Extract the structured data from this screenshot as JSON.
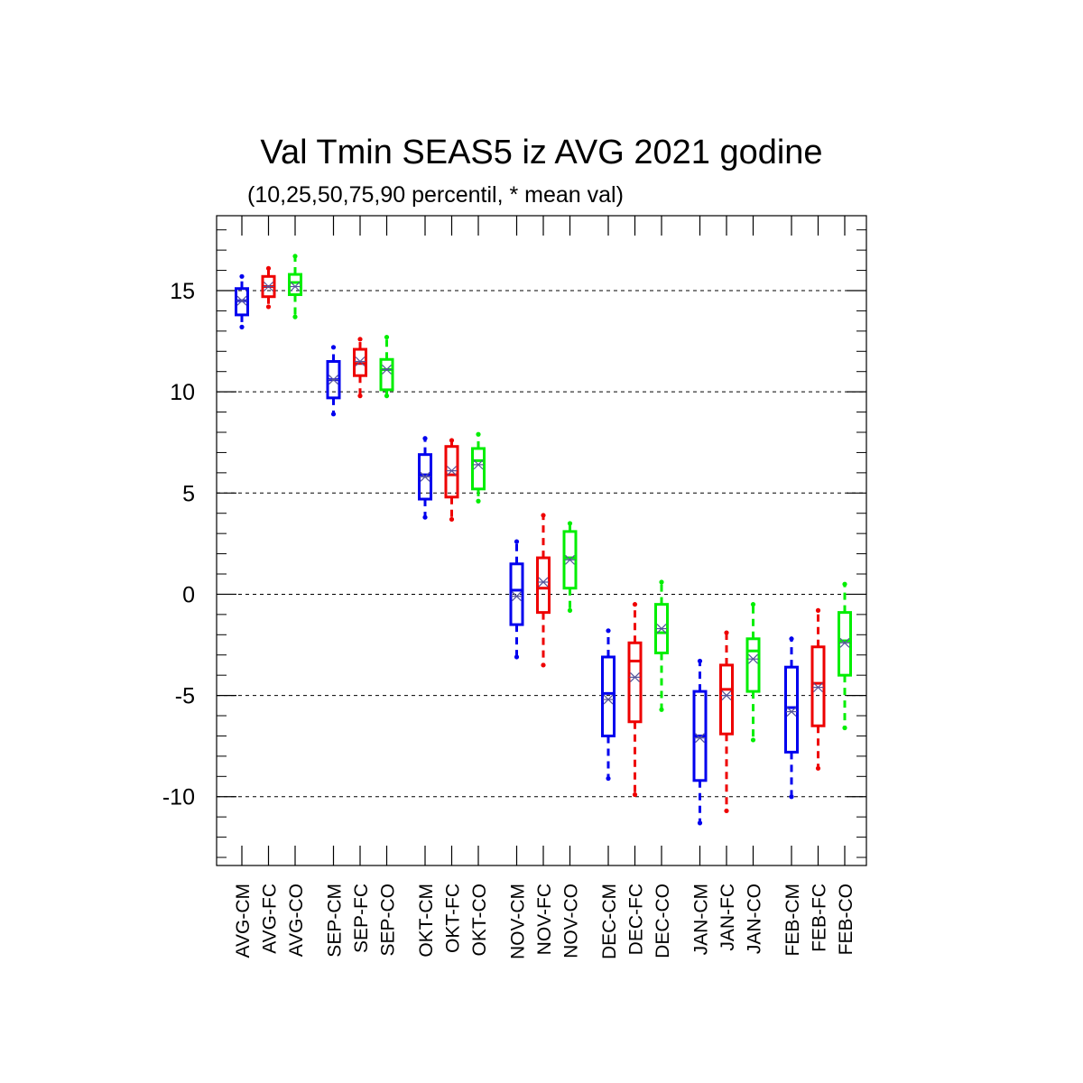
{
  "chart_data": {
    "type": "boxplot",
    "title": "Val Tmin SEAS5 iz AVG 2021 godine",
    "subtitle": "(10,25,50,75,90 percentil, * mean val)",
    "xlabel": "",
    "ylabel": "",
    "ylim": [
      -13.4,
      18.7
    ],
    "yticks": [
      15,
      10,
      5,
      0,
      -5,
      -10
    ],
    "ytick_labels": [
      "15",
      "10",
      "5",
      "0",
      "-5",
      "-10"
    ],
    "grid": "horizontal dashed",
    "series_colors": {
      "CM": "#0000ee",
      "FC": "#ee0000",
      "CO": "#00ee00"
    },
    "mean_marker_color": "#555599",
    "groups": [
      {
        "name": "AVG",
        "boxes": [
          {
            "label": "AVG-CM",
            "series": "CM",
            "p10": 13.2,
            "p25": 13.8,
            "p50": 14.5,
            "p75": 15.1,
            "p90": 15.7,
            "mean": 14.5
          },
          {
            "label": "AVG-FC",
            "series": "FC",
            "p10": 14.2,
            "p25": 14.7,
            "p50": 15.2,
            "p75": 15.7,
            "p90": 16.1,
            "mean": 15.2
          },
          {
            "label": "AVG-CO",
            "series": "CO",
            "p10": 13.7,
            "p25": 14.8,
            "p50": 15.4,
            "p75": 15.8,
            "p90": 16.7,
            "mean": 15.2
          }
        ]
      },
      {
        "name": "SEP",
        "boxes": [
          {
            "label": "SEP-CM",
            "series": "CM",
            "p10": 8.9,
            "p25": 9.7,
            "p50": 10.6,
            "p75": 11.5,
            "p90": 12.2,
            "mean": 10.6
          },
          {
            "label": "SEP-FC",
            "series": "FC",
            "p10": 9.8,
            "p25": 10.8,
            "p50": 11.4,
            "p75": 12.1,
            "p90": 12.6,
            "mean": 11.5
          },
          {
            "label": "SEP-CO",
            "series": "CO",
            "p10": 9.8,
            "p25": 10.1,
            "p50": 11.1,
            "p75": 11.6,
            "p90": 12.7,
            "mean": 11.1
          }
        ]
      },
      {
        "name": "OKT",
        "boxes": [
          {
            "label": "OKT-CM",
            "series": "CM",
            "p10": 3.8,
            "p25": 4.7,
            "p50": 5.9,
            "p75": 6.9,
            "p90": 7.7,
            "mean": 5.8
          },
          {
            "label": "OKT-FC",
            "series": "FC",
            "p10": 3.7,
            "p25": 4.8,
            "p50": 5.9,
            "p75": 7.3,
            "p90": 7.6,
            "mean": 6.1
          },
          {
            "label": "OKT-CO",
            "series": "CO",
            "p10": 4.6,
            "p25": 5.2,
            "p50": 6.6,
            "p75": 7.2,
            "p90": 7.9,
            "mean": 6.4
          }
        ]
      },
      {
        "name": "NOV",
        "boxes": [
          {
            "label": "NOV-CM",
            "series": "CM",
            "p10": -3.1,
            "p25": -1.5,
            "p50": 0.2,
            "p75": 1.5,
            "p90": 2.6,
            "mean": -0.1
          },
          {
            "label": "NOV-FC",
            "series": "FC",
            "p10": -3.5,
            "p25": -0.9,
            "p50": 0.3,
            "p75": 1.8,
            "p90": 3.9,
            "mean": 0.6
          },
          {
            "label": "NOV-CO",
            "series": "CO",
            "p10": -0.8,
            "p25": 0.3,
            "p50": 1.8,
            "p75": 3.1,
            "p90": 3.5,
            "mean": 1.7
          }
        ]
      },
      {
        "name": "DEC",
        "boxes": [
          {
            "label": "DEC-CM",
            "series": "CM",
            "p10": -9.1,
            "p25": -7.0,
            "p50": -4.9,
            "p75": -3.1,
            "p90": -1.8,
            "mean": -5.2
          },
          {
            "label": "DEC-FC",
            "series": "FC",
            "p10": -9.9,
            "p25": -6.3,
            "p50": -3.3,
            "p75": -2.4,
            "p90": -0.5,
            "mean": -4.1
          },
          {
            "label": "DEC-CO",
            "series": "CO",
            "p10": -5.7,
            "p25": -2.9,
            "p50": -1.9,
            "p75": -0.5,
            "p90": 0.6,
            "mean": -1.7
          }
        ]
      },
      {
        "name": "JAN",
        "boxes": [
          {
            "label": "JAN-CM",
            "series": "CM",
            "p10": -11.3,
            "p25": -9.2,
            "p50": -7.0,
            "p75": -4.8,
            "p90": -3.3,
            "mean": -7.1
          },
          {
            "label": "JAN-FC",
            "series": "FC",
            "p10": -10.7,
            "p25": -6.9,
            "p50": -4.7,
            "p75": -3.5,
            "p90": -1.9,
            "mean": -5.0
          },
          {
            "label": "JAN-CO",
            "series": "CO",
            "p10": -7.2,
            "p25": -4.8,
            "p50": -2.8,
            "p75": -2.2,
            "p90": -0.5,
            "mean": -3.2
          }
        ]
      },
      {
        "name": "FEB",
        "boxes": [
          {
            "label": "FEB-CM",
            "series": "CM",
            "p10": -10.0,
            "p25": -7.8,
            "p50": -5.6,
            "p75": -3.6,
            "p90": -2.2,
            "mean": -5.8
          },
          {
            "label": "FEB-FC",
            "series": "FC",
            "p10": -8.6,
            "p25": -6.5,
            "p50": -4.4,
            "p75": -2.6,
            "p90": -0.8,
            "mean": -4.6
          },
          {
            "label": "FEB-CO",
            "series": "CO",
            "p10": -6.6,
            "p25": -4.0,
            "p50": -2.3,
            "p75": -0.9,
            "p90": 0.5,
            "mean": -2.4
          }
        ]
      }
    ]
  }
}
